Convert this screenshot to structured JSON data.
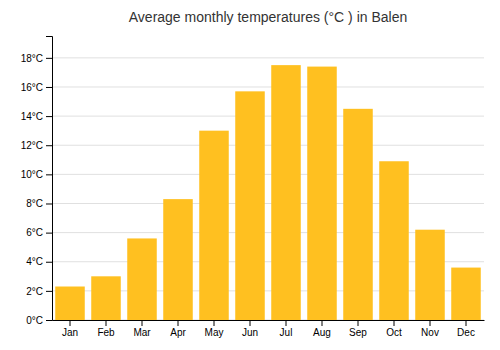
{
  "chart_data": {
    "type": "bar",
    "title": "Average monthly temperatures (°C ) in Balen",
    "categories": [
      "Jan",
      "Feb",
      "Mar",
      "Apr",
      "May",
      "Jun",
      "Jul",
      "Aug",
      "Sep",
      "Oct",
      "Nov",
      "Dec"
    ],
    "values": [
      2.3,
      3.0,
      5.6,
      8.3,
      13.0,
      15.7,
      17.5,
      17.4,
      14.5,
      10.9,
      6.2,
      3.6
    ],
    "color": "#FFC020",
    "ylim": [
      0,
      19.5
    ],
    "yticks": [
      {
        "value": 0,
        "label": "0°C"
      },
      {
        "value": 2,
        "label": "2°C"
      },
      {
        "value": 4,
        "label": "4°C"
      },
      {
        "value": 6,
        "label": "6°C"
      },
      {
        "value": 8,
        "label": "8°C"
      },
      {
        "value": 10,
        "label": "10°C"
      },
      {
        "value": 12,
        "label": "12°C"
      },
      {
        "value": 14,
        "label": "14°C"
      },
      {
        "value": 16,
        "label": "16°C"
      },
      {
        "value": 18,
        "label": "18°C"
      }
    ],
    "grid": true
  }
}
